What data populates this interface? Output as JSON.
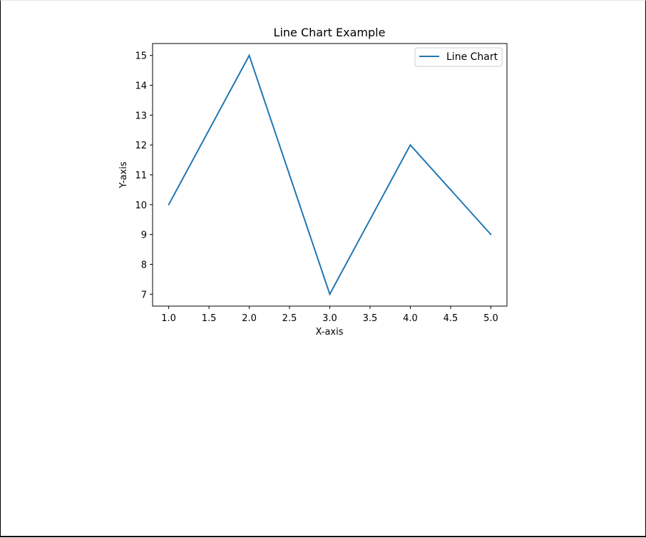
{
  "chart_data": {
    "type": "line",
    "title": "Line Chart Example",
    "xlabel": "X-axis",
    "ylabel": "Y-axis",
    "xlim": [
      0.8,
      5.2
    ],
    "ylim": [
      6.6,
      15.4
    ],
    "x_ticks": [
      "1.0",
      "1.5",
      "2.0",
      "2.5",
      "3.0",
      "3.5",
      "4.0",
      "4.5",
      "5.0"
    ],
    "y_ticks": [
      "7",
      "8",
      "9",
      "10",
      "11",
      "12",
      "13",
      "14",
      "15"
    ],
    "grid": false,
    "legend_position": "top-right",
    "series": [
      {
        "name": "Line Chart",
        "color": "#1f77b4",
        "x": [
          1,
          2,
          3,
          4,
          5
        ],
        "y": [
          10,
          15,
          7,
          12,
          9
        ]
      }
    ]
  }
}
